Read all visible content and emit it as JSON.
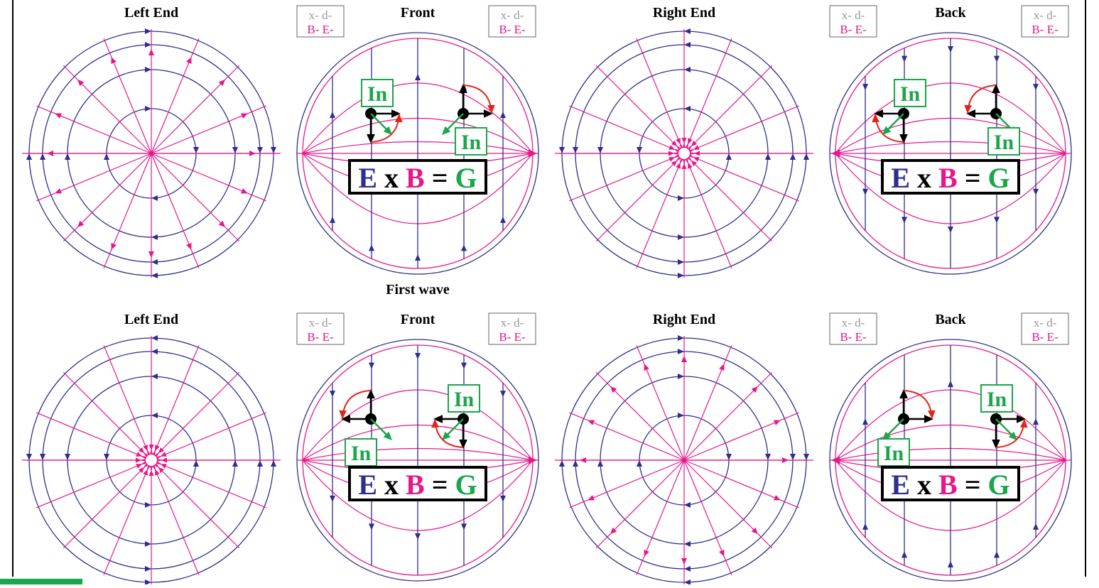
{
  "colors": {
    "electric": "#2e2e8f",
    "magnetic": "#e8168a",
    "gravity": "#1aa64a",
    "rotation": "#e0251b",
    "vector": "#000000",
    "frame": "#000000"
  },
  "rows": [
    {
      "caption": "First wave",
      "panels": [
        {
          "type": "end",
          "title": "Left End",
          "center": "point",
          "rings": "cw",
          "radial": "out"
        },
        {
          "type": "side",
          "title": "Front",
          "legend": [
            "x- d-",
            "B- E-"
          ],
          "equation": {
            "e": "E",
            "x": "x",
            "b": "B",
            "eq": "=",
            "g": "G"
          },
          "in_label_1": "In",
          "in_label_2": "In"
        },
        {
          "type": "end",
          "title": "Right End",
          "center": "burst",
          "rings": "ccw",
          "radial": "in"
        },
        {
          "type": "side",
          "title": "Back",
          "legend": [
            "x- d-",
            "B- E-"
          ],
          "equation": {
            "e": "E",
            "x": "x",
            "b": "B",
            "eq": "=",
            "g": "G"
          },
          "in_label_1": "In",
          "in_label_2": "In"
        }
      ]
    },
    {
      "caption": "",
      "panels": [
        {
          "type": "end",
          "title": "Left End",
          "center": "burst",
          "rings": "ccw",
          "radial": "in"
        },
        {
          "type": "side",
          "title": "Front",
          "legend": [
            "x- d-",
            "B- E-"
          ],
          "equation": {
            "e": "E",
            "x": "x",
            "b": "B",
            "eq": "=",
            "g": "G"
          },
          "in_label_1": "In",
          "in_label_2": "In"
        },
        {
          "type": "end",
          "title": "Right End",
          "center": "point",
          "rings": "cw",
          "radial": "out"
        },
        {
          "type": "side",
          "title": "Back",
          "legend": [
            "x- d-",
            "B- E-"
          ],
          "equation": {
            "e": "E",
            "x": "x",
            "b": "B",
            "eq": "=",
            "g": "G"
          },
          "in_label_1": "In",
          "in_label_2": "In"
        }
      ]
    }
  ]
}
